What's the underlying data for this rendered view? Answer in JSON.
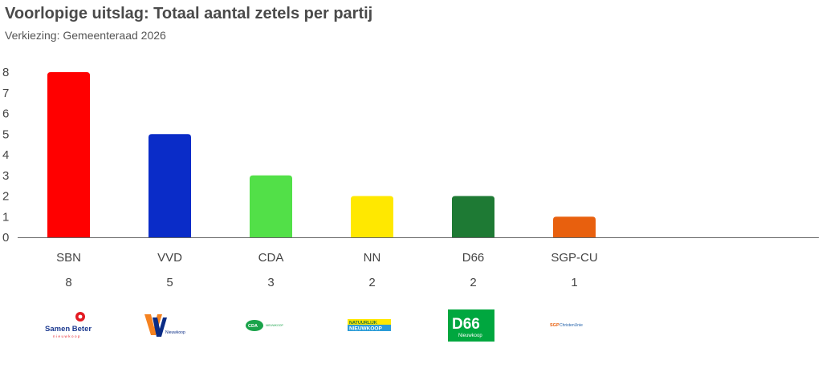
{
  "chart_data": {
    "type": "bar",
    "title": "Voorlopige uitslag: Totaal aantal zetels per partij",
    "subtitle": "Verkiezing: Gemeenteraad 2026",
    "categories": [
      "SBN",
      "VVD",
      "CDA",
      "NN",
      "D66",
      "SGP-CU"
    ],
    "values": [
      8,
      5,
      3,
      2,
      2,
      1
    ],
    "colors": [
      "#ff0000",
      "#0a2cc8",
      "#52e048",
      "#ffe800",
      "#1e7a34",
      "#e8600e"
    ],
    "ylim": [
      0,
      8
    ],
    "yticks": [
      "0",
      "1",
      "2",
      "3",
      "4",
      "5",
      "6",
      "7",
      "8"
    ],
    "grid": false
  },
  "logos": {
    "sbn": {
      "line1": "Samen Beter",
      "line2": "nieuwkoop"
    },
    "vvd": {
      "mark": "VVD",
      "line2": "Nieuwkoop"
    },
    "cda": {
      "mark": "CDA",
      "line2": "NIEUWKOOP"
    },
    "nn": {
      "line1": "NATUURLIJK",
      "line2": "NIEUWKOOP"
    },
    "d66": {
      "mark": "D66",
      "line2": "Nieuwkoop"
    },
    "sgpcu": {
      "mark": "SGP",
      "line2": "ChristenUnie"
    }
  }
}
